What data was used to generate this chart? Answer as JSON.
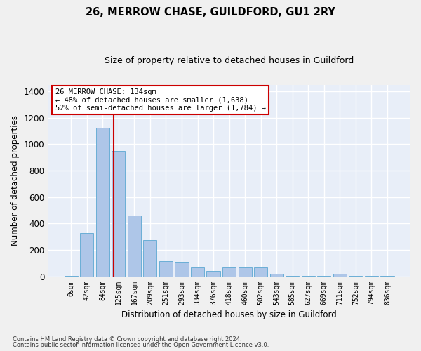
{
  "title": "26, MERROW CHASE, GUILDFORD, GU1 2RY",
  "subtitle": "Size of property relative to detached houses in Guildford",
  "xlabel": "Distribution of detached houses by size in Guildford",
  "ylabel": "Number of detached properties",
  "footer_line1": "Contains HM Land Registry data © Crown copyright and database right 2024.",
  "footer_line2": "Contains public sector information licensed under the Open Government Licence v3.0.",
  "categories": [
    "0sqm",
    "42sqm",
    "84sqm",
    "125sqm",
    "167sqm",
    "209sqm",
    "251sqm",
    "293sqm",
    "334sqm",
    "376sqm",
    "418sqm",
    "460sqm",
    "502sqm",
    "543sqm",
    "585sqm",
    "627sqm",
    "669sqm",
    "711sqm",
    "752sqm",
    "794sqm",
    "836sqm"
  ],
  "values": [
    3,
    325,
    1125,
    950,
    460,
    275,
    115,
    110,
    65,
    40,
    65,
    65,
    65,
    20,
    3,
    3,
    3,
    20,
    3,
    3,
    3
  ],
  "bar_color": "#aec6e8",
  "bar_edge_color": "#6baed6",
  "background_color": "#e8eef8",
  "grid_color": "#ffffff",
  "vline_color": "#cc0000",
  "vline_position": 2.71,
  "annotation_text": "26 MERROW CHASE: 134sqm\n← 48% of detached houses are smaller (1,638)\n52% of semi-detached houses are larger (1,784) →",
  "annotation_box_color": "#ffffff",
  "annotation_box_edge": "#cc0000",
  "ylim": [
    0,
    1450
  ],
  "yticks": [
    0,
    200,
    400,
    600,
    800,
    1000,
    1200,
    1400
  ],
  "fig_bg": "#f0f0f0"
}
